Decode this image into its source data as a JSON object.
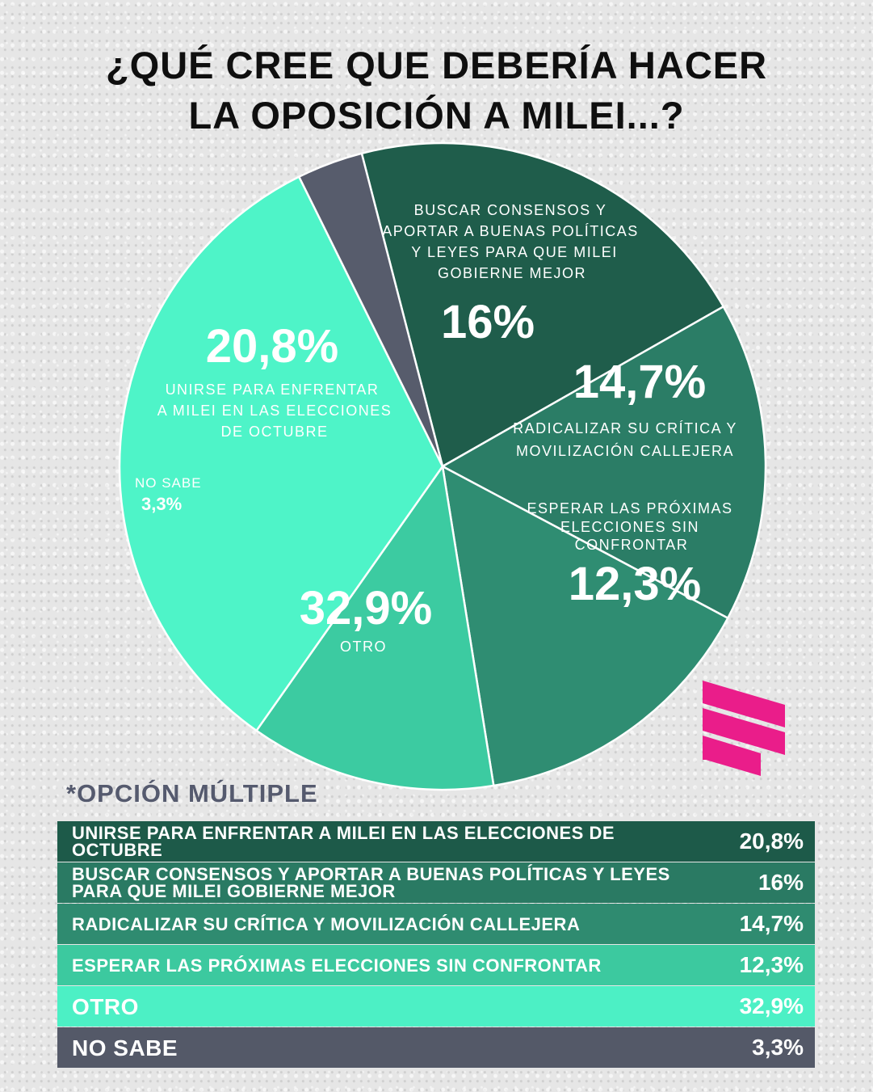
{
  "title": {
    "line1": "¿QUÉ CREE QUE DEBERÍA HACER",
    "line2": "LA OPOSICIÓN A MILEI...?"
  },
  "chart_data": {
    "type": "pie",
    "slices": [
      {
        "label_lines": [
          "UNIRSE PARA ENFRENTAR",
          "A MILEI EN LAS ELECCIONES",
          "DE OCTUBRE"
        ],
        "value": 20.8,
        "display": "20,8%",
        "color": "#1f5d4b"
      },
      {
        "label_lines": [
          "BUSCAR CONSENSOS Y",
          "APORTAR A BUENAS POLÍTICAS",
          "Y LEYES PARA QUE MILEI",
          "GOBIERNE MEJOR"
        ],
        "value": 16,
        "display": "16%",
        "color": "#2b7d66"
      },
      {
        "label_lines": [
          "RADICALIZAR SU CRÍTICA Y",
          "MOVILIZACIÓN CALLEJERA"
        ],
        "value": 14.7,
        "display": "14,7%",
        "color": "#2f8d72"
      },
      {
        "label_lines": [
          "ESPERAR LAS PRÓXIMAS",
          "ELECCIONES SIN",
          "CONFRONTAR"
        ],
        "value": 12.3,
        "display": "12,3%",
        "color": "#3ccba1"
      },
      {
        "label_lines": [
          "OTRO"
        ],
        "value": 32.9,
        "display": "32,9%",
        "color": "#4ef4c8"
      },
      {
        "label_lines": [
          "NO SABE"
        ],
        "value": 3.3,
        "display": "3,3%",
        "color": "#575c6c"
      }
    ]
  },
  "note": "*OPCIÓN MÚLTIPLE",
  "table": [
    {
      "label": "UNIRSE PARA ENFRENTAR A MILEI EN LAS  ELECCIONES DE OCTUBRE",
      "value": "20,8%"
    },
    {
      "label": "BUSCAR CONSENSOS Y APORTAR A BUENAS POLÍTICAS Y LEYES PARA QUE MILEI GOBIERNE MEJOR",
      "value": "16%"
    },
    {
      "label": "RADICALIZAR SU CRÍTICA Y MOVILIZACIÓN CALLEJERA",
      "value": "14,7%"
    },
    {
      "label": "ESPERAR LAS PRÓXIMAS ELECCIONES SIN CONFRONTAR",
      "value": "12,3%"
    },
    {
      "label": "OTRO",
      "value": "32,9%"
    },
    {
      "label": "NO SABE",
      "value": "3,3%"
    }
  ],
  "colors": {
    "logo": "#ea1d8a",
    "slice_border": "#ffffff"
  },
  "logo_icon": "brand-logo-icon"
}
